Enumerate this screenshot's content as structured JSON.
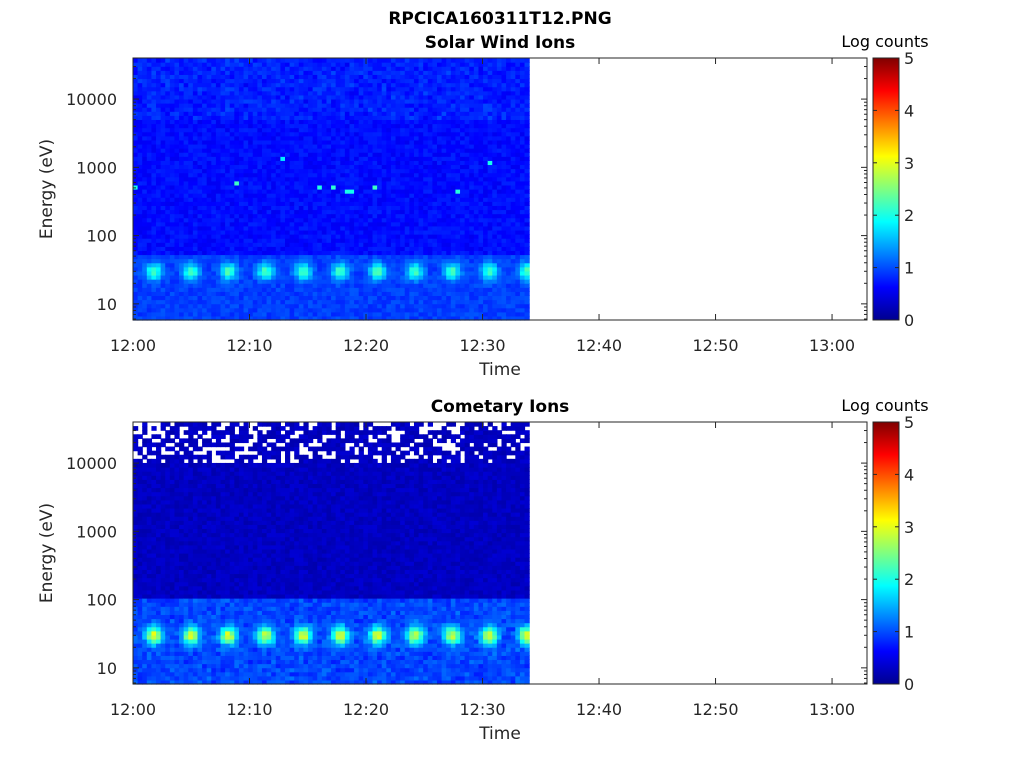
{
  "figure_title": "RPCICA160311T12.PNG",
  "colors": {
    "colormap": "jet",
    "axes": "#262626",
    "background": "#ffffff"
  },
  "chart_data": [
    {
      "type": "heatmap",
      "title": "Solar Wind Ions",
      "xlabel": "Time",
      "ylabel": "Energy (eV)",
      "x_ticks": [
        "12:00",
        "12:10",
        "12:20",
        "12:30",
        "12:40",
        "12:50",
        "13:00"
      ],
      "xlim": [
        "12:00",
        "13:03"
      ],
      "data_end": "12:34",
      "y_scale": "log",
      "y_ticks": [
        "10",
        "100",
        "1000",
        "10000"
      ],
      "ylim": [
        5.8,
        40000
      ],
      "colorbar": {
        "label": "Log counts",
        "ticks": [
          "0",
          "1",
          "2",
          "3",
          "4",
          "5"
        ],
        "range": [
          0,
          5
        ]
      },
      "features": [
        {
          "energy_eV": 30,
          "log_counts": 2.0,
          "note": "band peaking roughly every 3.2 min"
        },
        {
          "energy_eV": 1250,
          "log_counts": 1.9,
          "note": "sporadic"
        },
        {
          "energy_eV": 520,
          "log_counts": 2.1,
          "note": "sporadic"
        },
        {
          "energy_eV": [
            100,
            40000
          ],
          "log_counts": 0.6,
          "note": "background"
        }
      ]
    },
    {
      "type": "heatmap",
      "title": "Cometary Ions",
      "xlabel": "Time",
      "ylabel": "Energy (eV)",
      "x_ticks": [
        "12:00",
        "12:10",
        "12:20",
        "12:30",
        "12:40",
        "12:50",
        "13:00"
      ],
      "xlim": [
        "12:00",
        "13:03"
      ],
      "data_end": "12:34",
      "y_scale": "log",
      "y_ticks": [
        "10",
        "100",
        "1000",
        "10000"
      ],
      "ylim": [
        5.8,
        40000
      ],
      "colorbar": {
        "label": "Log counts",
        "ticks": [
          "0",
          "1",
          "2",
          "3",
          "4",
          "5"
        ],
        "range": [
          0,
          5
        ]
      },
      "features": [
        {
          "energy_eV": 30,
          "log_counts": 2.5,
          "note": "band peaking roughly every 3.2 min"
        },
        {
          "energy_eV": [
            10,
            100
          ],
          "log_counts": 1.0
        },
        {
          "energy_eV": [
            100,
            40000
          ],
          "log_counts": 0.3,
          "note": "background with empty cells above 10000 eV"
        }
      ]
    }
  ]
}
